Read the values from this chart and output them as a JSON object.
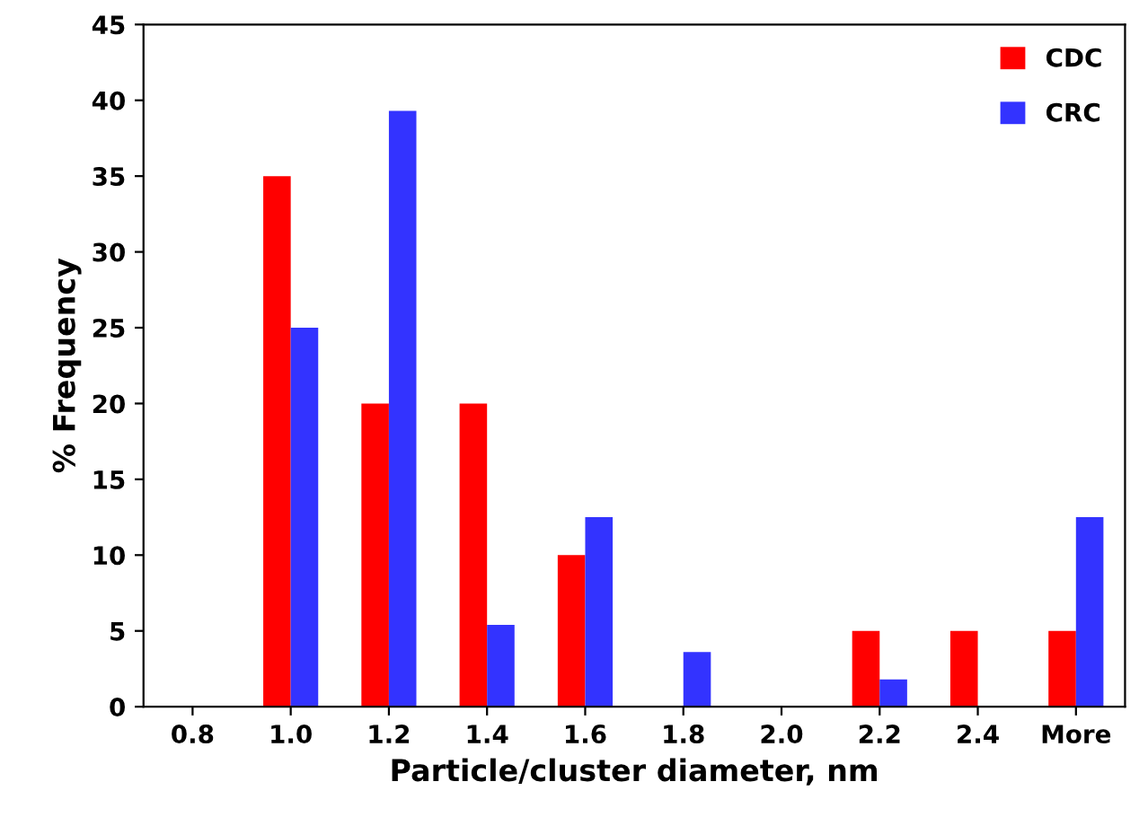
{
  "chart_data": {
    "type": "bar",
    "xlabel": "Particle/cluster diameter, nm",
    "ylabel": "% Frequency",
    "categories": [
      "0.8",
      "1.0",
      "1.2",
      "1.4",
      "1.6",
      "1.8",
      "2.0",
      "2.2",
      "2.4",
      "More"
    ],
    "series": [
      {
        "name": "CDC",
        "color": "#ff0000",
        "values": [
          0,
          35,
          20,
          20,
          10,
          0,
          0,
          5,
          5,
          5
        ]
      },
      {
        "name": "CRC",
        "color": "#3333ff",
        "values": [
          0,
          25,
          39.3,
          5.4,
          12.5,
          3.6,
          0,
          1.8,
          0,
          12.5
        ]
      }
    ],
    "ylim": [
      0,
      45
    ],
    "yticks": [
      0,
      5,
      10,
      15,
      20,
      25,
      30,
      35,
      40,
      45
    ],
    "grid": false,
    "legend": "top right"
  }
}
